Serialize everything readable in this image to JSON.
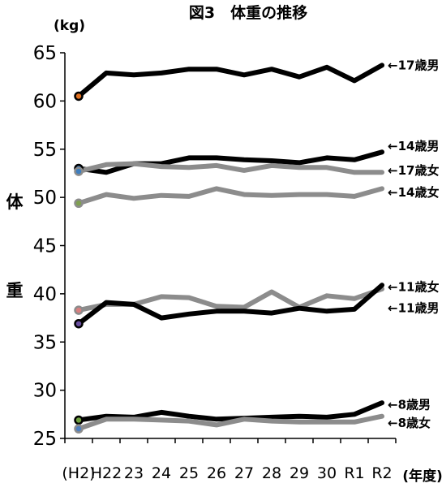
{
  "chart_data": {
    "type": "line",
    "title": "図3　体重の推移",
    "unit": "(kg)",
    "xlabel": "(年度)",
    "ylabel": "体重",
    "ylabel_chars": [
      "体",
      "重"
    ],
    "ylim": [
      25,
      65
    ],
    "yticks": [
      25,
      30,
      35,
      40,
      45,
      50,
      55,
      60,
      65
    ],
    "grid": false,
    "categories": [
      "(H2)",
      "H22",
      "23",
      "24",
      "25",
      "26",
      "27",
      "28",
      "29",
      "30",
      "R1",
      "R2"
    ],
    "series": [
      {
        "name": "←17歳男",
        "color": "#000000",
        "marker": "#e07020",
        "values": [
          60.5,
          62.9,
          62.7,
          62.9,
          63.3,
          63.3,
          62.7,
          63.3,
          62.5,
          63.5,
          62.1,
          63.7
        ]
      },
      {
        "name": "←14歳男",
        "color": "#000000",
        "marker": "#3f7fbf",
        "values": [
          53.0,
          52.6,
          53.5,
          53.5,
          54.1,
          54.1,
          53.9,
          53.8,
          53.6,
          54.1,
          53.9,
          54.7
        ]
      },
      {
        "name": "←17歳女",
        "color": "#8c8c8c",
        "marker": "#3f7fbf",
        "values": [
          52.7,
          53.4,
          53.5,
          53.2,
          53.1,
          53.3,
          52.8,
          53.3,
          53.1,
          53.1,
          52.6,
          52.6
        ]
      },
      {
        "name": "←14歳女",
        "color": "#8c8c8c",
        "marker": "#7fa050",
        "values": [
          49.4,
          50.3,
          49.9,
          50.2,
          50.1,
          50.9,
          50.3,
          50.2,
          50.3,
          50.3,
          50.1,
          50.9
        ]
      },
      {
        "name": "←11歳女",
        "color": "#8c8c8c",
        "marker": "#d98080",
        "values": [
          38.3,
          38.9,
          38.9,
          39.7,
          39.6,
          38.7,
          38.6,
          40.2,
          38.6,
          39.8,
          39.5,
          40.5
        ]
      },
      {
        "name": "←11歳男",
        "color": "#000000",
        "marker": "#6a4fa0",
        "values": [
          36.9,
          39.1,
          38.9,
          37.5,
          37.9,
          38.2,
          38.2,
          38.0,
          38.5,
          38.2,
          38.4,
          40.9
        ]
      },
      {
        "name": "←8歳男",
        "color": "#000000",
        "marker": "#70a040",
        "values": [
          26.9,
          27.3,
          27.2,
          27.7,
          27.3,
          27.0,
          27.1,
          27.2,
          27.3,
          27.2,
          27.5,
          28.7
        ]
      },
      {
        "name": "←8歳女",
        "color": "#8c8c8c",
        "marker": "#4f7fbf",
        "values": [
          26.0,
          27.0,
          27.0,
          26.9,
          26.8,
          26.4,
          27.0,
          26.8,
          26.7,
          26.7,
          26.7,
          27.3
        ]
      }
    ],
    "series_label_values": [
      63.7,
      55.3,
      52.8,
      50.5,
      40.7,
      38.5,
      28.5,
      26.6
    ]
  }
}
